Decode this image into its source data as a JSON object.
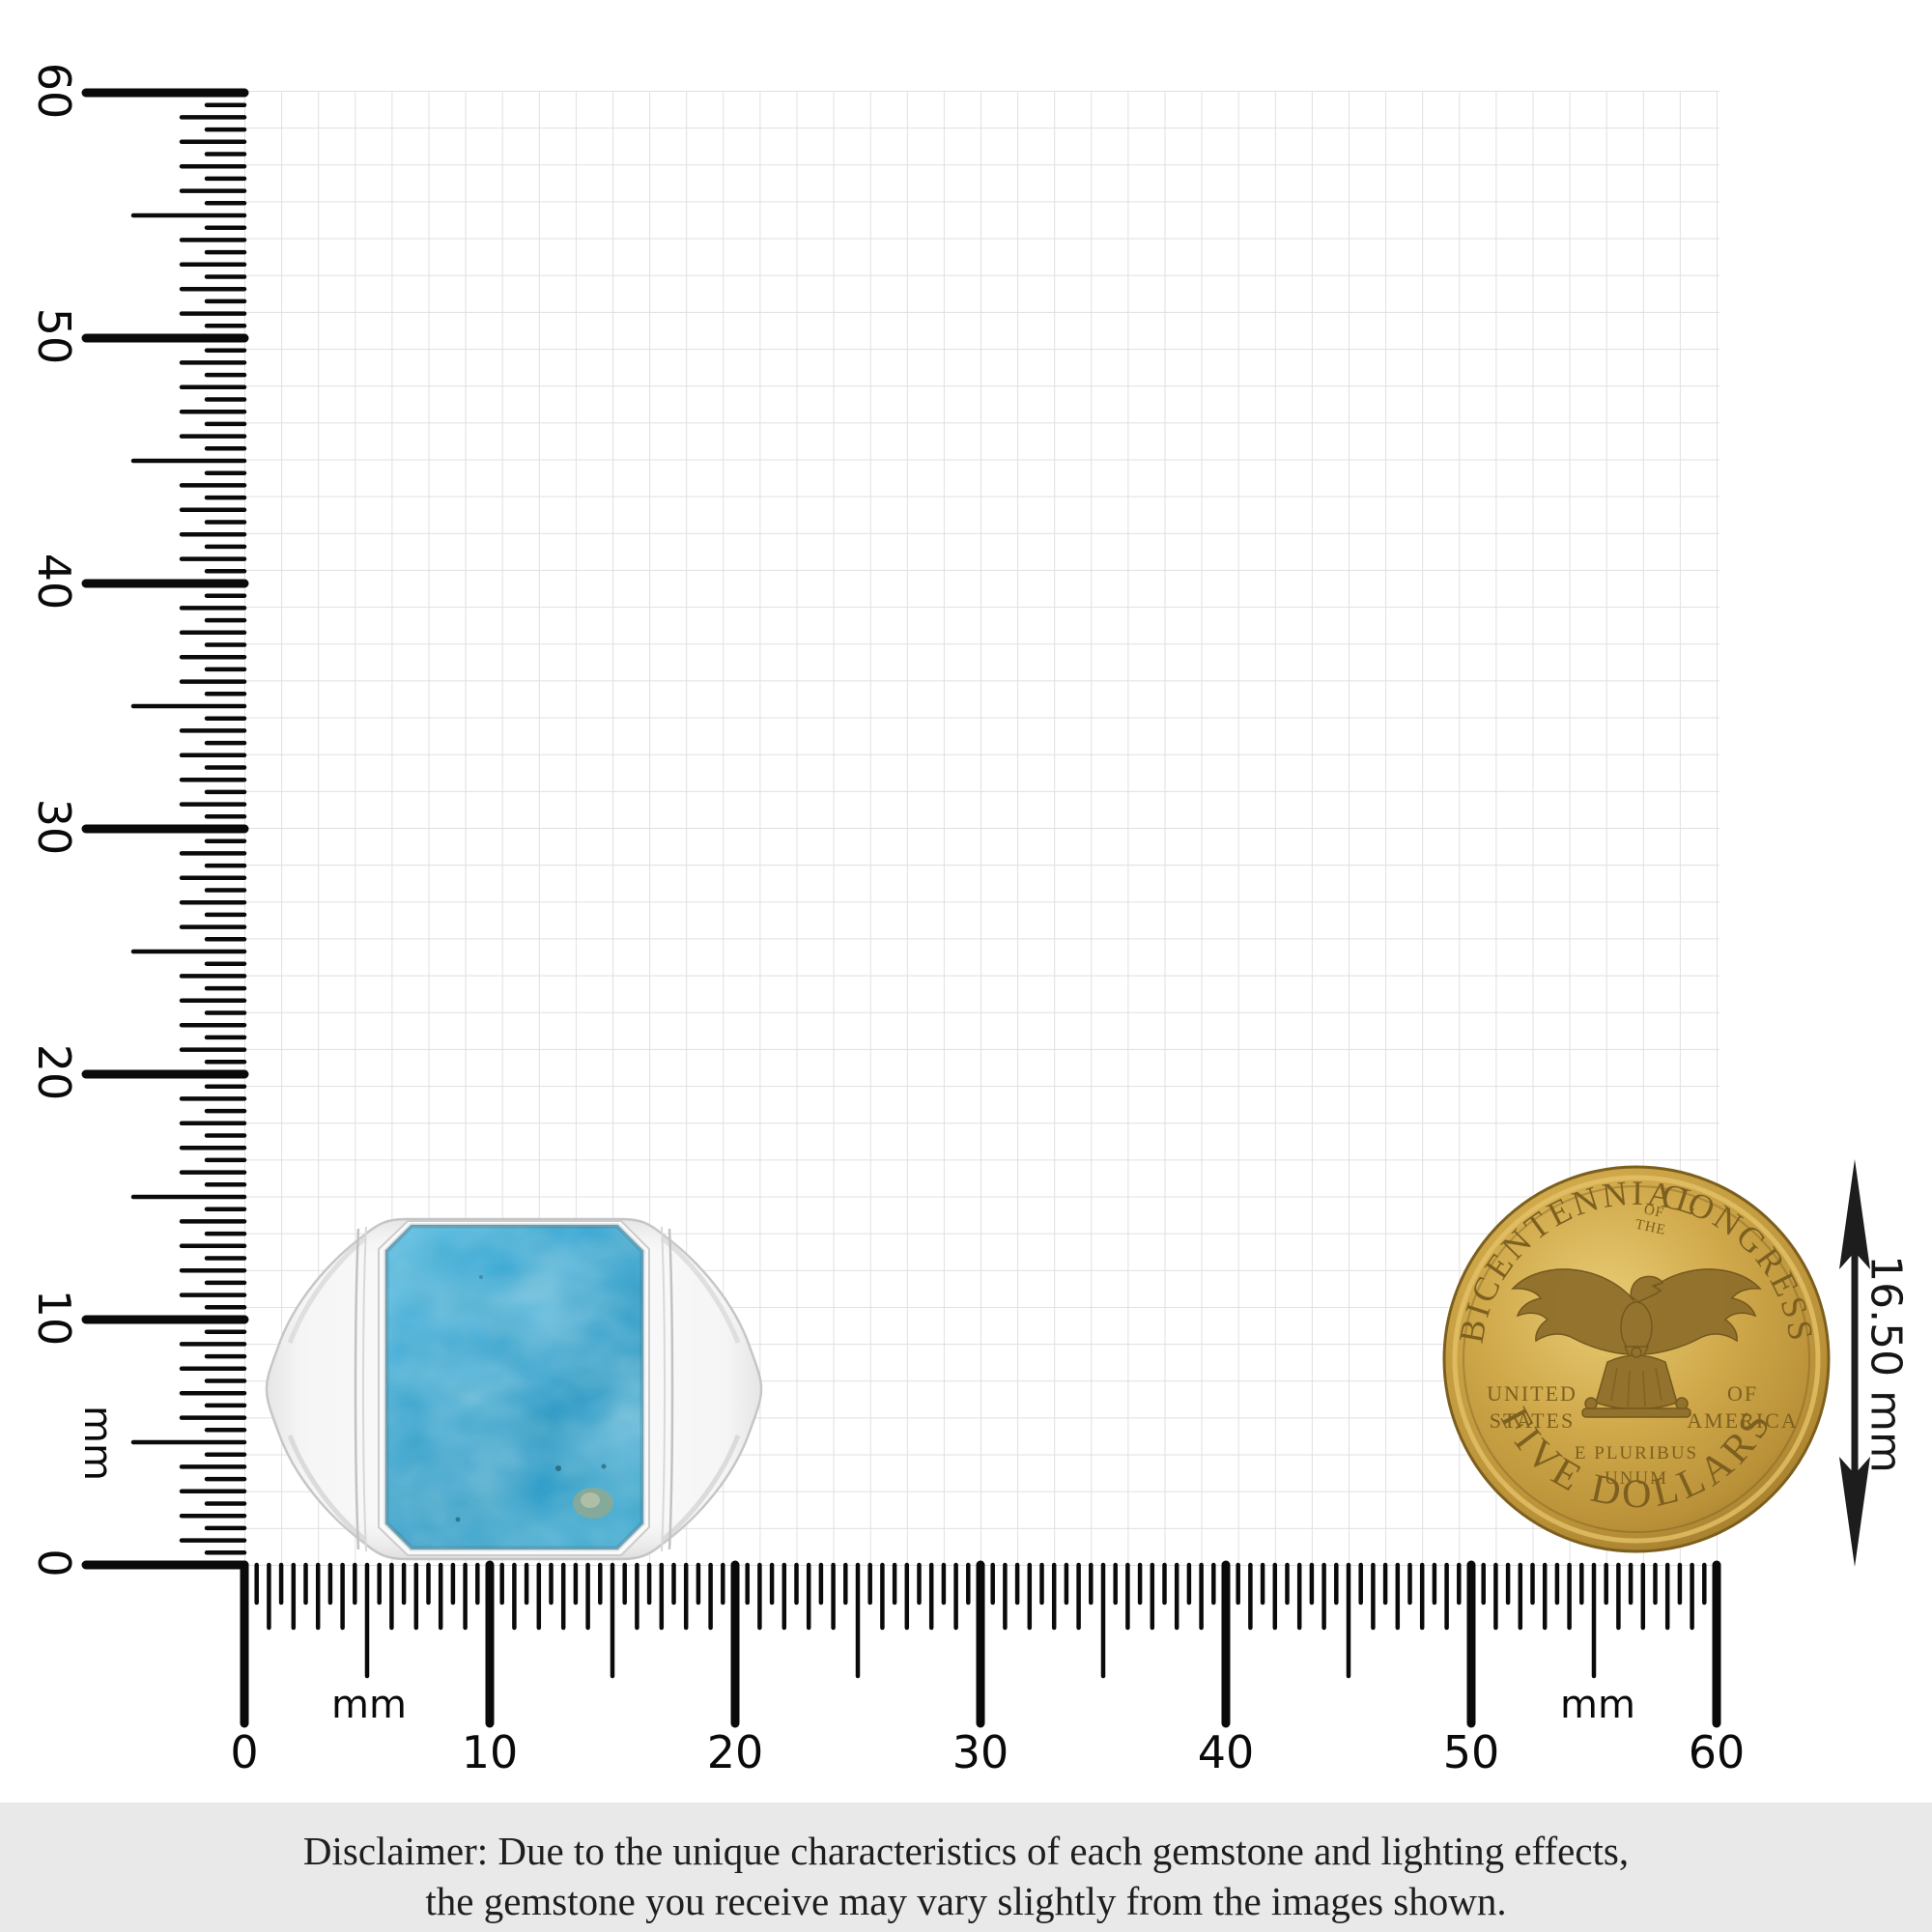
{
  "rulers": {
    "vertical": {
      "labels": [
        "60",
        "50",
        "40",
        "30",
        "20",
        "10",
        "0"
      ],
      "unit": "mm"
    },
    "horizontal": {
      "labels": [
        "0",
        "10",
        "20",
        "30",
        "40",
        "50",
        "60"
      ],
      "unit_left": "mm",
      "unit_right": "mm"
    }
  },
  "grid": {
    "line_color": "#e0e0e0"
  },
  "ring": {
    "stone_color": "#34a5d2",
    "metal_color": "#f6f6f6"
  },
  "coin": {
    "legend_left": "BICENTENNIAL",
    "legend_small_top": "OF",
    "legend_small_bottom": "THE",
    "legend_right": "CONGRESS",
    "field_left_line1": "UNITED",
    "field_left_line2": "STATES",
    "field_right_line1": "OF",
    "field_right_line2": "AMERICA",
    "motto_line1": "E PLURIBUS",
    "motto_line2": "UNUM",
    "denomination": "FIVE DOLLARS",
    "gold_color": "#c9a245"
  },
  "measurement": {
    "label": "16.50 mm"
  },
  "disclaimer": {
    "background": "#e9e9e9",
    "line1": "Disclaimer: Due to the unique characteristics of each gemstone and lighting effects,",
    "line2": "the gemstone you receive may vary slightly from the images shown."
  }
}
